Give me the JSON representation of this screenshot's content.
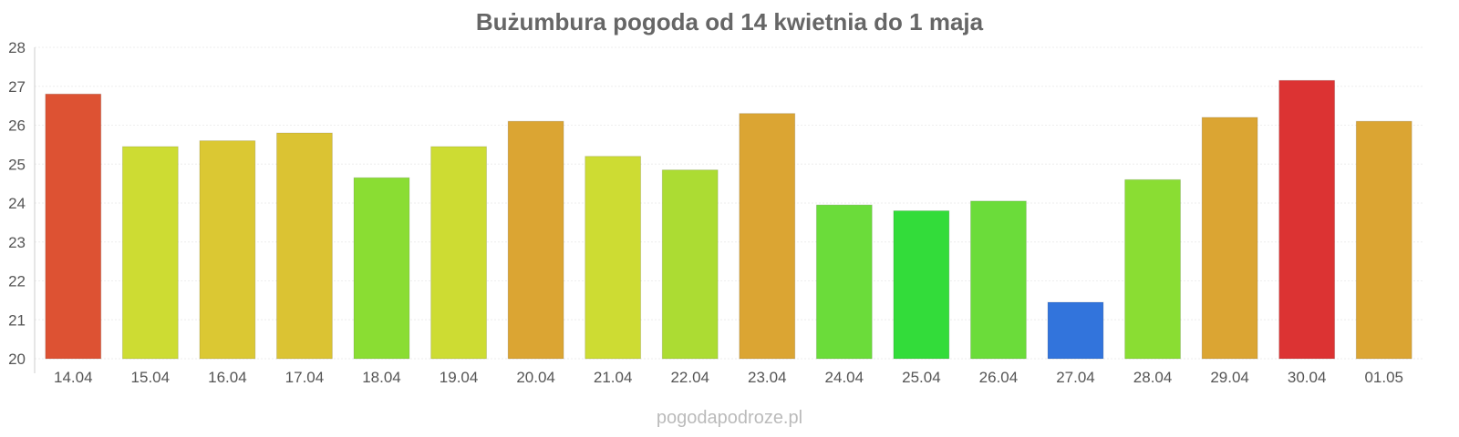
{
  "chart_data": {
    "type": "bar",
    "title": "Bużumbura pogoda od 14 kwietnia do 1 maja",
    "xlabel": "",
    "ylabel": "",
    "ylim": [
      20,
      28
    ],
    "y_ticks": [
      "20",
      "21",
      "22",
      "23",
      "24",
      "25",
      "26",
      "27",
      "28"
    ],
    "grid": true,
    "categories": [
      "14.04",
      "15.04",
      "16.04",
      "17.04",
      "18.04",
      "19.04",
      "20.04",
      "21.04",
      "22.04",
      "23.04",
      "24.04",
      "25.04",
      "26.04",
      "27.04",
      "28.04",
      "29.04",
      "30.04",
      "01.05"
    ],
    "values": [
      26.8,
      25.45,
      25.6,
      25.8,
      24.65,
      25.45,
      26.1,
      25.2,
      24.85,
      26.3,
      23.95,
      23.8,
      24.05,
      21.45,
      24.6,
      26.2,
      27.15,
      26.1
    ],
    "colors": [
      "#dd5233",
      "#cddc33",
      "#dbc833",
      "#dbc333",
      "#8add33",
      "#cddc33",
      "#dba533",
      "#cddc33",
      "#acdc33",
      "#dba533",
      "#6bdc3a",
      "#33dc3a",
      "#6bdc3a",
      "#3274dc",
      "#8add33",
      "#dba533",
      "#dc3333",
      "#dba533"
    ]
  },
  "watermark": "pogodapodroze.pl"
}
